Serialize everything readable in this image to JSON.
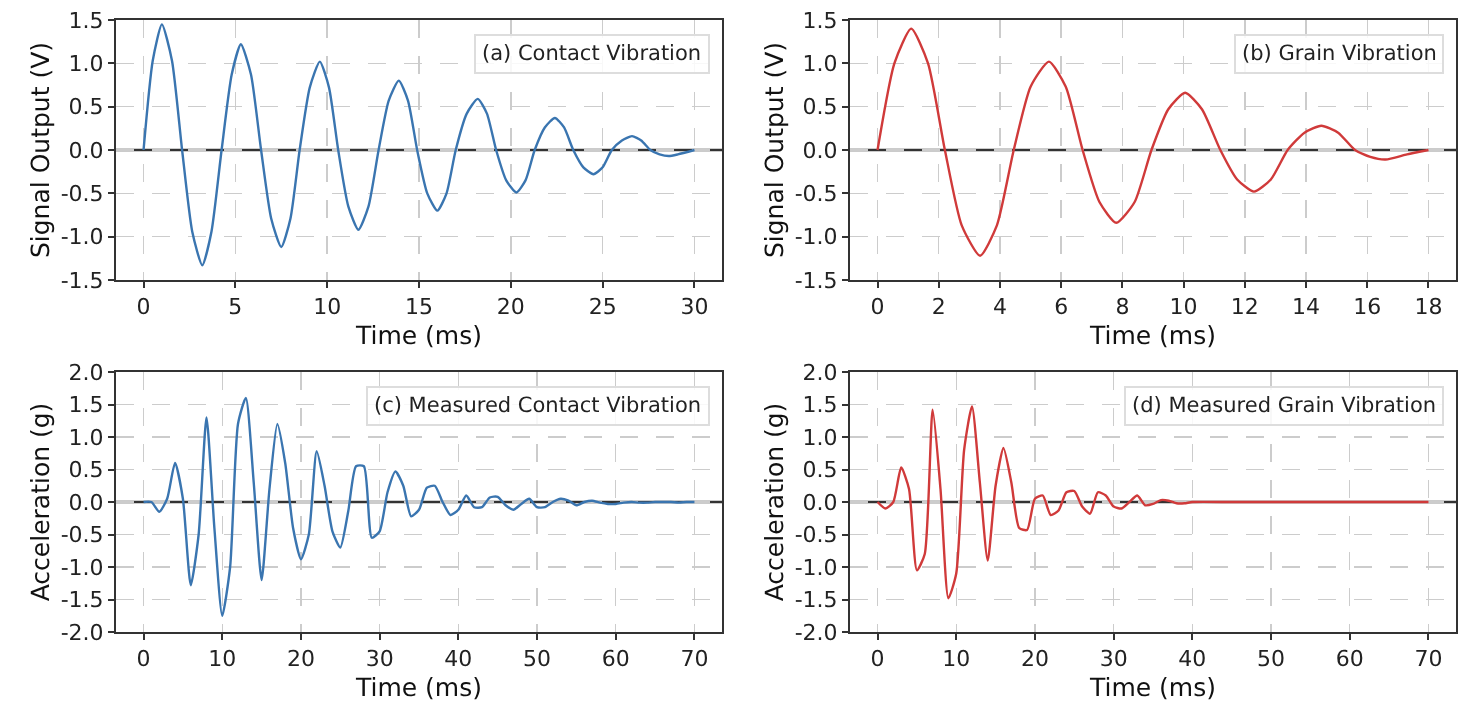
{
  "chart_data": [
    {
      "type": "line",
      "xlabel": "Time (ms)",
      "ylabel": "Signal Output (V)",
      "annotations": [
        "(a) Contact Vibration"
      ],
      "color": "#3a75b0",
      "grid": true,
      "ref_lines": [
        {
          "axis": "y",
          "value": 0,
          "color": "#333333"
        }
      ],
      "x": [
        0,
        0.5,
        1.0,
        1.55,
        2.1,
        2.65,
        3.2,
        3.7,
        4.25,
        4.8,
        5.3,
        5.85,
        6.4,
        6.95,
        7.5,
        8.0,
        8.5,
        9.05,
        9.6,
        10.1,
        10.6,
        11.15,
        11.7,
        12.25,
        12.8,
        13.35,
        13.9,
        14.4,
        14.9,
        15.45,
        16.0,
        16.5,
        17.0,
        17.6,
        18.2,
        18.7,
        19.2,
        19.75,
        20.3,
        20.8,
        21.3,
        21.85,
        22.4,
        22.9,
        23.4,
        23.95,
        24.5,
        25.0,
        25.5,
        26.05,
        26.6,
        27.1,
        27.6,
        28.1,
        28.6,
        29.1,
        30
      ],
      "values": [
        0,
        1.03,
        1.45,
        1.03,
        0,
        -0.94,
        -1.33,
        -0.94,
        0,
        0.87,
        1.22,
        0.87,
        0,
        -0.79,
        -1.12,
        -0.79,
        0,
        0.72,
        1.02,
        0.72,
        0,
        -0.65,
        -0.92,
        -0.65,
        0,
        0.57,
        0.8,
        0.57,
        0,
        -0.5,
        -0.7,
        -0.5,
        0,
        0.42,
        0.59,
        0.42,
        0,
        -0.35,
        -0.49,
        -0.35,
        0,
        0.26,
        0.37,
        0.26,
        0,
        -0.2,
        -0.28,
        -0.2,
        0,
        0.11,
        0.16,
        0.11,
        0,
        -0.05,
        -0.07,
        -0.05,
        0
      ],
      "xlim": [
        -1.5,
        31.5
      ],
      "xticks": [
        0,
        5,
        10,
        15,
        20,
        25,
        30
      ],
      "ylim": [
        -1.5,
        1.5
      ],
      "yticks": [
        {
          "value": -1.5,
          "label": "-1.5"
        },
        {
          "value": -1,
          "label": "-1.0"
        },
        {
          "value": -0.5,
          "label": "-0.5"
        },
        {
          "value": 0,
          "label": "0.0"
        },
        {
          "value": 0.5,
          "label": "0.5"
        },
        {
          "value": 1,
          "label": "1.0"
        },
        {
          "value": 1.5,
          "label": "1.5"
        }
      ]
    },
    {
      "type": "line",
      "xlabel": "Time (ms)",
      "ylabel": "Signal Output (V)",
      "annotations": [
        "(b) Grain Vibration"
      ],
      "color": "#d03a3a",
      "grid": true,
      "ref_lines": [
        {
          "axis": "y",
          "value": 0,
          "color": "#333333"
        }
      ],
      "x": [
        0,
        0.55,
        1.1,
        1.65,
        2.2,
        2.75,
        3.35,
        3.9,
        4.45,
        5.0,
        5.6,
        6.15,
        6.7,
        7.25,
        7.8,
        8.4,
        8.95,
        9.5,
        10.05,
        10.6,
        11.2,
        11.75,
        12.3,
        12.85,
        13.4,
        13.95,
        14.5,
        15.05,
        15.6,
        16.1,
        16.6,
        17.3,
        18
      ],
      "values": [
        0,
        1.0,
        1.4,
        1.0,
        0,
        -0.87,
        -1.22,
        -0.87,
        0,
        0.73,
        1.02,
        0.73,
        0,
        -0.6,
        -0.84,
        -0.6,
        0,
        0.47,
        0.66,
        0.47,
        0,
        -0.34,
        -0.48,
        -0.34,
        0,
        0.2,
        0.28,
        0.2,
        0,
        -0.08,
        -0.11,
        -0.05,
        0
      ],
      "xlim": [
        -0.9,
        18.9
      ],
      "xticks": [
        0,
        2,
        4,
        6,
        8,
        10,
        12,
        14,
        16,
        18
      ],
      "ylim": [
        -1.5,
        1.5
      ],
      "yticks": [
        {
          "value": -1.5,
          "label": "-1.5"
        },
        {
          "value": -1,
          "label": "-1.0"
        },
        {
          "value": -0.5,
          "label": "-0.5"
        },
        {
          "value": 0,
          "label": "0.0"
        },
        {
          "value": 0.5,
          "label": "0.5"
        },
        {
          "value": 1,
          "label": "1.0"
        },
        {
          "value": 1.5,
          "label": "1.5"
        }
      ]
    },
    {
      "type": "line",
      "xlabel": "Time (ms)",
      "ylabel": "Acceleration (g)",
      "annotations": [
        "(c) Measured Contact Vibration"
      ],
      "color": "#3a75b0",
      "grid": true,
      "ref_lines": [
        {
          "axis": "y",
          "value": 0,
          "color": "#333333"
        }
      ],
      "x": [
        0,
        1,
        2,
        3,
        4,
        5,
        6,
        7,
        8,
        9,
        10,
        11,
        12,
        13,
        14,
        15,
        16,
        17,
        18,
        19,
        20,
        21,
        22,
        23,
        24,
        25,
        26,
        27,
        28,
        29,
        30,
        31,
        32,
        33,
        34,
        35,
        36,
        37,
        38,
        39,
        40,
        41,
        42,
        43,
        44,
        45,
        46,
        47,
        48,
        49,
        50,
        51,
        52,
        53,
        54,
        55,
        56,
        57,
        58,
        59,
        60,
        61,
        62,
        63,
        64,
        65,
        66,
        67,
        68,
        69,
        70
      ],
      "values": [
        0,
        0,
        -0.15,
        0.05,
        0.6,
        0.05,
        -1.28,
        -0.5,
        1.3,
        -0.4,
        -1.75,
        -1.0,
        1.2,
        1.6,
        0.3,
        -1.2,
        0.2,
        1.2,
        0.6,
        -0.4,
        -0.88,
        -0.5,
        0.78,
        0.25,
        -0.45,
        -0.7,
        -0.15,
        0.55,
        0.55,
        -0.55,
        -0.45,
        0.15,
        0.47,
        0.25,
        -0.22,
        -0.12,
        0.22,
        0.25,
        0,
        -0.2,
        -0.12,
        0.1,
        -0.08,
        -0.08,
        0.07,
        0.08,
        -0.05,
        -0.12,
        -0.03,
        0.05,
        -0.08,
        -0.08,
        0,
        0.05,
        0.02,
        -0.05,
        0,
        0.02,
        -0.01,
        -0.03,
        -0.03,
        -0.01,
        0,
        -0.01,
        -0.01,
        0,
        0,
        0,
        -0.01,
        0,
        0
      ],
      "xlim": [
        -3.5,
        73.5
      ],
      "xticks": [
        0,
        10,
        20,
        30,
        40,
        50,
        60,
        70
      ],
      "ylim": [
        -2,
        2
      ],
      "yticks": [
        {
          "value": -2,
          "label": "-2.0"
        },
        {
          "value": -1.5,
          "label": "-1.5"
        },
        {
          "value": -1,
          "label": "-1.0"
        },
        {
          "value": -0.5,
          "label": "-0.5"
        },
        {
          "value": 0,
          "label": "0.0"
        },
        {
          "value": 0.5,
          "label": "0.5"
        },
        {
          "value": 1,
          "label": "1.0"
        },
        {
          "value": 1.5,
          "label": "1.5"
        },
        {
          "value": 2,
          "label": "2.0"
        }
      ]
    },
    {
      "type": "line",
      "xlabel": "Time (ms)",
      "ylabel": "Acceleration (g)",
      "annotations": [
        "(d) Measured Grain Vibration"
      ],
      "color": "#d03a3a",
      "grid": true,
      "ref_lines": [
        {
          "axis": "y",
          "value": 0,
          "color": "#333333"
        }
      ],
      "x": [
        0,
        1,
        2,
        3,
        4,
        5,
        6,
        7,
        8,
        9,
        10,
        11,
        12,
        13,
        14,
        15,
        16,
        17,
        18,
        19,
        20,
        21,
        22,
        23,
        24,
        25,
        26,
        27,
        28,
        29,
        30,
        31,
        32,
        33,
        34,
        35,
        36,
        37,
        38,
        39,
        40,
        45,
        50,
        55,
        60,
        65,
        70
      ],
      "values": [
        0,
        -0.1,
        0,
        0.53,
        0.2,
        -1.05,
        -0.8,
        1.42,
        0.2,
        -1.48,
        -1.1,
        0.8,
        1.47,
        0.3,
        -0.9,
        0.25,
        0.83,
        0.3,
        -0.4,
        -0.43,
        0.05,
        0.1,
        -0.2,
        -0.13,
        0.15,
        0.17,
        -0.07,
        -0.18,
        0.15,
        0.1,
        -0.07,
        -0.1,
        0,
        0.1,
        -0.05,
        -0.03,
        0.03,
        0.02,
        -0.02,
        -0.02,
        0,
        0,
        0,
        0,
        0,
        0,
        0
      ],
      "xlim": [
        -3.5,
        73.5
      ],
      "xticks": [
        0,
        10,
        20,
        30,
        40,
        50,
        60,
        70
      ],
      "ylim": [
        -2,
        2
      ],
      "yticks": [
        {
          "value": -2,
          "label": "-2.0"
        },
        {
          "value": -1.5,
          "label": "-1.5"
        },
        {
          "value": -1,
          "label": "-1.0"
        },
        {
          "value": -0.5,
          "label": "-0.5"
        },
        {
          "value": 0,
          "label": "0.0"
        },
        {
          "value": 0.5,
          "label": "0.5"
        },
        {
          "value": 1,
          "label": "1.0"
        },
        {
          "value": 1.5,
          "label": "1.5"
        },
        {
          "value": 2,
          "label": "2.0"
        }
      ]
    }
  ]
}
